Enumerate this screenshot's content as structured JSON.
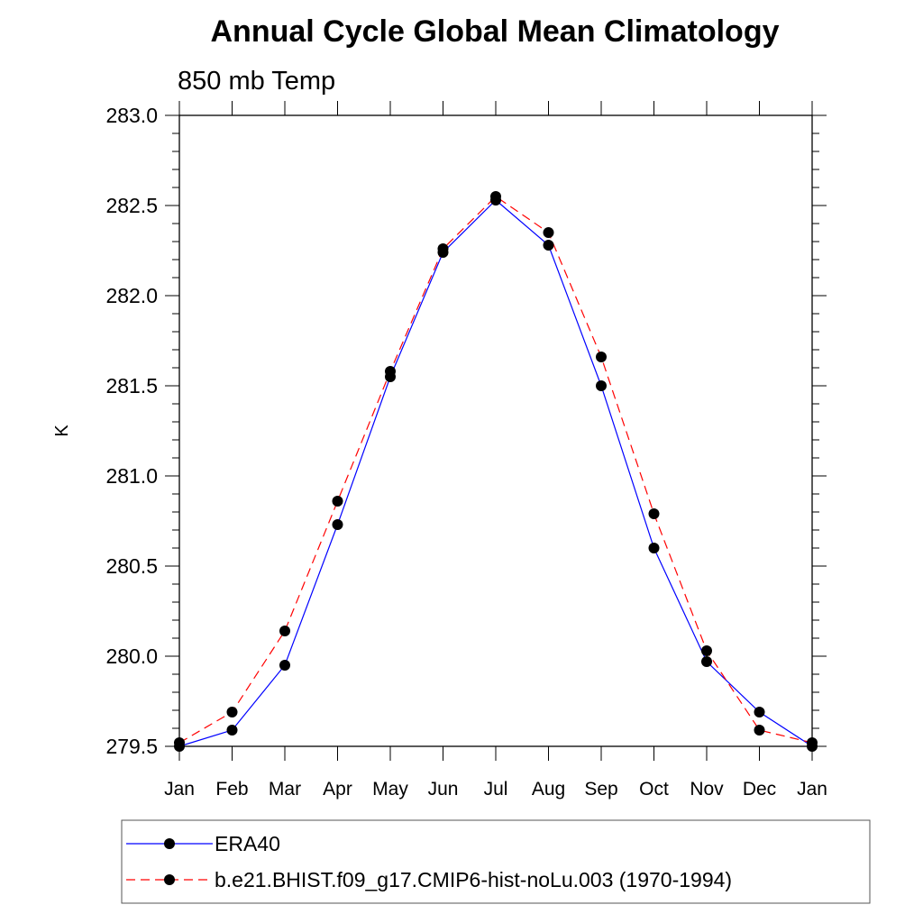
{
  "chart_data": {
    "type": "line",
    "title": "Annual Cycle Global Mean Climatology",
    "subtitle": "850 mb Temp",
    "xlabel": "",
    "ylabel": "K",
    "categories": [
      "Jan",
      "Feb",
      "Mar",
      "Apr",
      "May",
      "Jun",
      "Jul",
      "Aug",
      "Sep",
      "Oct",
      "Nov",
      "Dec",
      "Jan"
    ],
    "ylim": [
      279.5,
      283.0
    ],
    "yticks": [
      "279.5",
      "280.0",
      "280.5",
      "281.0",
      "281.5",
      "282.0",
      "282.5",
      "283.0"
    ],
    "grid": false,
    "legend_position": "bottom",
    "series": [
      {
        "name": "ERA40",
        "color": "#0000ff",
        "style": "solid",
        "values": [
          279.5,
          279.59,
          279.95,
          280.73,
          281.55,
          282.24,
          282.53,
          282.28,
          281.5,
          280.6,
          279.97,
          279.69,
          279.5
        ]
      },
      {
        "name": "b.e21.BHIST.f09_g17.CMIP6-hist-noLu.003 (1970-1994)",
        "color": "#ff0000",
        "style": "dashed",
        "values": [
          279.52,
          279.69,
          280.14,
          280.86,
          281.58,
          282.26,
          282.55,
          282.35,
          281.66,
          280.79,
          280.03,
          279.59,
          279.52
        ]
      }
    ]
  }
}
